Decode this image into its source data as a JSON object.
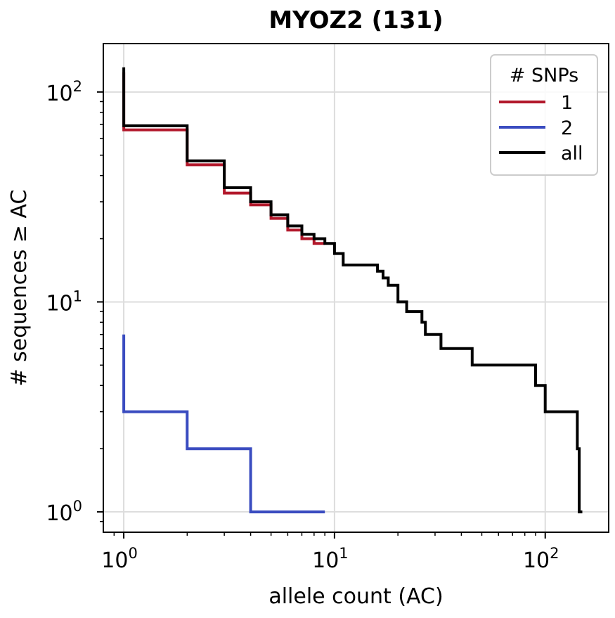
{
  "chart_data": {
    "type": "line",
    "step": "post",
    "title": "MYOZ2 (131)",
    "xlabel": "allele count (AC)",
    "ylabel": "# sequences ≥ AC",
    "xscale": "log",
    "yscale": "log",
    "xlim": [
      0.8,
      200
    ],
    "ylim": [
      0.8,
      170
    ],
    "x_ticks": [
      {
        "base": "10",
        "exp": "0",
        "value": 1
      },
      {
        "base": "10",
        "exp": "1",
        "value": 10
      },
      {
        "base": "10",
        "exp": "2",
        "value": 100
      }
    ],
    "y_ticks": [
      {
        "base": "10",
        "exp": "0",
        "value": 1
      },
      {
        "base": "10",
        "exp": "1",
        "value": 10
      },
      {
        "base": "10",
        "exp": "2",
        "value": 100
      }
    ],
    "grid": true,
    "legend": {
      "title": "# SNPs",
      "placement": "top-right"
    },
    "series": [
      {
        "name": "1",
        "color": "#b2182b",
        "points": [
          [
            1,
            124
          ],
          [
            1,
            66
          ],
          [
            2,
            66
          ],
          [
            2,
            45
          ],
          [
            3,
            45
          ],
          [
            3,
            33
          ],
          [
            4,
            33
          ],
          [
            4,
            29
          ],
          [
            5,
            29
          ],
          [
            5,
            25
          ],
          [
            6,
            25
          ],
          [
            6,
            22
          ],
          [
            7,
            22
          ],
          [
            7,
            20
          ],
          [
            8,
            20
          ],
          [
            8,
            19
          ],
          [
            9,
            19
          ]
        ]
      },
      {
        "name": "2",
        "color": "#3a4cc0",
        "points": [
          [
            1,
            7
          ],
          [
            1,
            3
          ],
          [
            2,
            3
          ],
          [
            2,
            2
          ],
          [
            4,
            2
          ],
          [
            4,
            1
          ],
          [
            9,
            1
          ]
        ]
      },
      {
        "name": "all",
        "color": "#000000",
        "points": [
          [
            1,
            131
          ],
          [
            1,
            69
          ],
          [
            2,
            69
          ],
          [
            2,
            47
          ],
          [
            3,
            47
          ],
          [
            3,
            35
          ],
          [
            4,
            35
          ],
          [
            4,
            30
          ],
          [
            5,
            30
          ],
          [
            5,
            26
          ],
          [
            6,
            26
          ],
          [
            6,
            23
          ],
          [
            7,
            23
          ],
          [
            7,
            21
          ],
          [
            8,
            21
          ],
          [
            8,
            20
          ],
          [
            9,
            20
          ],
          [
            9,
            19
          ],
          [
            10,
            19
          ],
          [
            10,
            17
          ],
          [
            11,
            17
          ],
          [
            11,
            15
          ],
          [
            16,
            15
          ],
          [
            16,
            14
          ],
          [
            17,
            14
          ],
          [
            17,
            13
          ],
          [
            18,
            13
          ],
          [
            18,
            12
          ],
          [
            20,
            12
          ],
          [
            20,
            10
          ],
          [
            22,
            10
          ],
          [
            22,
            9
          ],
          [
            26,
            9
          ],
          [
            26,
            8
          ],
          [
            27,
            8
          ],
          [
            27,
            7
          ],
          [
            32,
            7
          ],
          [
            32,
            6
          ],
          [
            45,
            6
          ],
          [
            45,
            5
          ],
          [
            90,
            5
          ],
          [
            90,
            4
          ],
          [
            100,
            4
          ],
          [
            100,
            3
          ],
          [
            142,
            3
          ],
          [
            142,
            2
          ],
          [
            145,
            2
          ],
          [
            145,
            1
          ],
          [
            150,
            1
          ]
        ]
      }
    ]
  }
}
